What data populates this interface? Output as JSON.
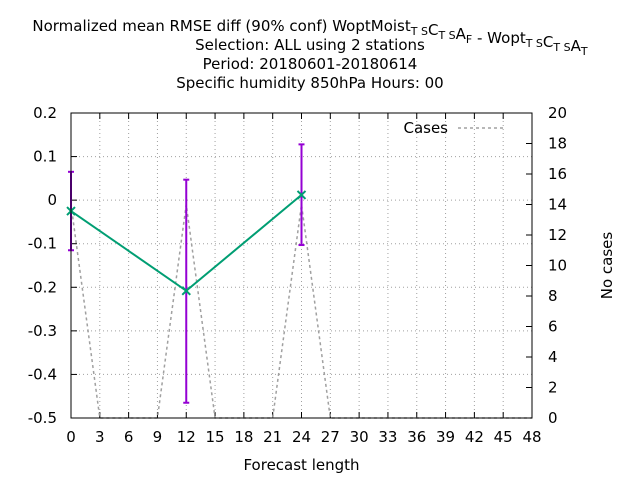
{
  "chart_data": {
    "type": "line",
    "title_lines": [
      {
        "parts": [
          {
            "t": "Normalized mean RMSE diff (90% conf) WoptMoist"
          },
          {
            "t": "T S",
            "sub": true
          },
          {
            "t": "C"
          },
          {
            "t": "T S",
            "sub": true
          },
          {
            "t": "A"
          },
          {
            "t": "F",
            "sub": true
          },
          {
            "t": " - Wopt"
          },
          {
            "t": "T S",
            "sub": true
          },
          {
            "t": "C"
          },
          {
            "t": "T S",
            "sub": true
          },
          {
            "t": "A"
          },
          {
            "t": "T",
            "sub": true
          }
        ]
      },
      {
        "parts": [
          {
            "t": "Selection: ALL using     2 stations"
          }
        ]
      },
      {
        "parts": [
          {
            "t": "Period: 20180601-20180614"
          }
        ]
      },
      {
        "parts": [
          {
            "t": "Specific humidity 850hPa   Hours:  00"
          }
        ]
      }
    ],
    "xlabel": "Forecast length",
    "ylabel": "",
    "y2label": "No cases",
    "xlim": [
      0,
      48
    ],
    "ylim": [
      -0.5,
      0.2
    ],
    "y2lim": [
      0,
      20
    ],
    "xticks": [
      0,
      3,
      6,
      9,
      12,
      15,
      18,
      21,
      24,
      27,
      30,
      33,
      36,
      39,
      42,
      45,
      48
    ],
    "yticks": [
      -0.5,
      -0.4,
      -0.3,
      -0.2,
      -0.1,
      0,
      0.1,
      0.2
    ],
    "ytick_labels": [
      "-0.5",
      "-0.4",
      "-0.3",
      "-0.2",
      "-0.1",
      "0",
      "0.1",
      "0.2"
    ],
    "y2ticks": [
      0,
      2,
      4,
      6,
      8,
      10,
      12,
      14,
      16,
      18,
      20
    ],
    "grid": true,
    "legend_position": "top-right",
    "diff_series": {
      "color": "#009e73",
      "errorbar_color": "#9400d3",
      "points": [
        {
          "x": 0,
          "y": -0.025,
          "lo": -0.115,
          "hi": 0.065
        },
        {
          "x": 12,
          "y": -0.208,
          "lo": -0.465,
          "hi": 0.047
        },
        {
          "x": 24,
          "y": 0.012,
          "lo": -0.103,
          "hi": 0.128
        }
      ]
    },
    "cases_series": {
      "name": "Cases",
      "color": "#a0a0a0",
      "x": [
        0,
        3,
        6,
        9,
        12,
        15,
        18,
        21,
        24,
        27,
        30,
        33,
        36,
        39,
        42,
        45,
        48
      ],
      "values": [
        14,
        0,
        0,
        0,
        14,
        0,
        0,
        0,
        14,
        0,
        0,
        0,
        0,
        0,
        0,
        0,
        0
      ]
    }
  }
}
